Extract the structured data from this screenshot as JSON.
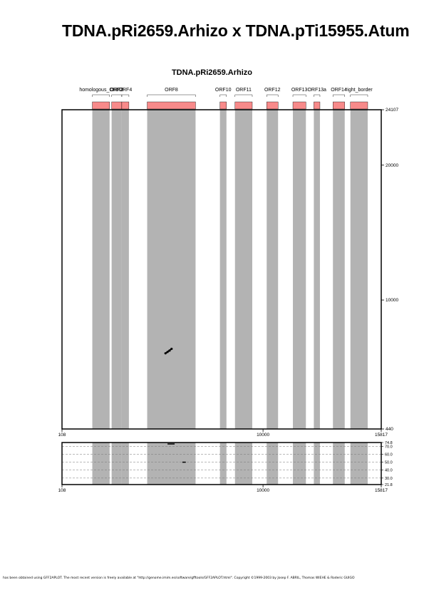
{
  "title": "TDNA.pRi2659.Arhizo x TDNA.pTi15955.Atum",
  "footer": "has been obtained using GFF2APLOT. The most recent version is freely available at \"http://genome.imim.es/software/gfftools/GFF2APLOT.html\". Copyright ©1999-2003 by Josep F. ABRIL, Thomas WIEHE & Roderic GUIGO",
  "chart_data": [
    {
      "type": "scatter",
      "title": "TDNA.pRi2659.Arhizo",
      "xlim": [
        108,
        15817
      ],
      "ylim": [
        440,
        24107
      ],
      "x_ticks": [
        "108",
        "10000",
        "15817"
      ],
      "y_ticks": [
        "24107",
        "20000",
        "10000",
        "440"
      ],
      "features": [
        {
          "label": "homologous_ORF2",
          "start": 1600,
          "end": 2450
        },
        {
          "label": "ORF3",
          "start": 2550,
          "end": 3050
        },
        {
          "label": "ORF4",
          "start": 3050,
          "end": 3400
        },
        {
          "label": "ORF8",
          "start": 4300,
          "end": 6680
        },
        {
          "label": "ORF10",
          "start": 7880,
          "end": 8200
        },
        {
          "label": "ORF11",
          "start": 8620,
          "end": 9470
        },
        {
          "label": "ORF12",
          "start": 10180,
          "end": 10740
        },
        {
          "label": "ORF13",
          "start": 11470,
          "end": 12110
        },
        {
          "label": "ORF13a",
          "start": 12500,
          "end": 12800
        },
        {
          "label": "ORF14",
          "start": 13440,
          "end": 14020
        },
        {
          "label": "right_border",
          "start": 14300,
          "end": 15150
        }
      ],
      "feature_color": "#f88a8a",
      "band_color": "#b3b3b3",
      "points": [
        {
          "x": 5200,
          "y": 6050
        },
        {
          "x": 5300,
          "y": 6150
        },
        {
          "x": 5400,
          "y": 6250
        },
        {
          "x": 5500,
          "y": 6380
        }
      ]
    },
    {
      "type": "line",
      "xlim": [
        108,
        15817
      ],
      "ylim": [
        21.8,
        74.8
      ],
      "x_ticks": [
        "108",
        "10000",
        "15817"
      ],
      "y_ticks": [
        "74.8",
        "70.0",
        "60.0",
        "50.0",
        "40.0",
        "30.0",
        "21.8"
      ],
      "grid": true,
      "segments": [
        {
          "x1": 5300,
          "x2": 5650,
          "y": 73
        },
        {
          "x1": 6030,
          "x2": 6200,
          "y": 50
        }
      ]
    }
  ]
}
